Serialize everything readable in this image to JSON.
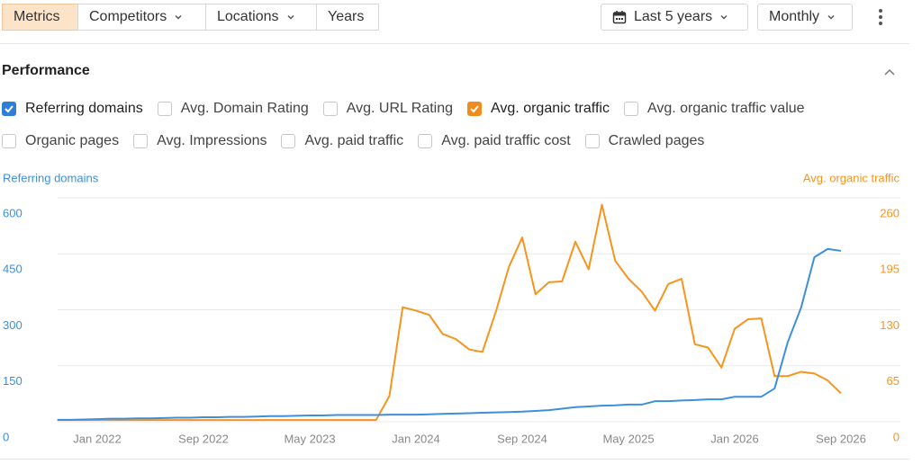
{
  "toolbar": {
    "left": [
      "Metrics",
      "Competitors",
      "Locations",
      "Years"
    ],
    "right": [
      "Last 5 years",
      "Monthly"
    ]
  },
  "section": {
    "title": "Performance"
  },
  "checkboxes": [
    [
      {
        "label": "Referring domains",
        "checked": true,
        "color": "#2f7fd9"
      },
      {
        "label": "Avg. Domain Rating",
        "checked": false
      },
      {
        "label": "Avg. URL Rating",
        "checked": false
      },
      {
        "label": "Avg. organic traffic",
        "checked": true,
        "color": "#f28b1e"
      },
      {
        "label": "Avg. organic traffic value",
        "checked": false
      }
    ],
    [
      {
        "label": "Organic pages",
        "checked": false
      },
      {
        "label": "Avg. Impressions",
        "checked": false
      },
      {
        "label": "Avg. paid traffic",
        "checked": false
      },
      {
        "label": "Avg. paid traffic cost",
        "checked": false
      },
      {
        "label": "Crawled pages",
        "checked": false
      }
    ]
  ],
  "chart_data": {
    "type": "line",
    "categories": [
      null,
      null,
      null,
      "Jan 2022",
      null,
      null,
      null,
      null,
      null,
      null,
      null,
      "Sep 2022",
      null,
      null,
      null,
      null,
      null,
      null,
      null,
      "May 2023",
      null,
      null,
      null,
      null,
      null,
      null,
      null,
      "Jan 2024",
      null,
      null,
      null,
      null,
      null,
      null,
      null,
      "Sep 2024",
      null,
      null,
      null,
      null,
      null,
      null,
      null,
      "May 2025",
      null,
      null,
      null,
      null,
      null,
      null,
      null,
      "Jan 2026",
      null,
      null,
      null,
      null,
      null,
      null,
      null,
      "Sep 2026"
    ],
    "series": [
      {
        "name": "Referring domains",
        "color": "#3d8fdb",
        "axis": "y",
        "values": [
          5,
          5,
          6,
          7,
          8,
          8,
          9,
          9,
          10,
          11,
          11,
          12,
          12,
          13,
          13,
          14,
          15,
          15,
          16,
          17,
          17,
          18,
          18,
          18,
          18,
          19,
          19,
          19,
          20,
          21,
          22,
          23,
          24,
          25,
          26,
          27,
          29,
          31,
          35,
          39,
          41,
          43,
          44,
          46,
          46,
          55,
          55,
          57,
          58,
          60,
          60,
          67,
          67,
          67,
          89,
          214,
          306,
          441,
          463,
          458
        ]
      },
      {
        "name": "Avg. organic traffic",
        "color": "#f7941d",
        "axis": "y2",
        "values": [
          2,
          2,
          2,
          2,
          2,
          2,
          2,
          2,
          2,
          2,
          2,
          2,
          2,
          2,
          2,
          2,
          2,
          2,
          2,
          2,
          2,
          2,
          2,
          2,
          2,
          30,
          133,
          129,
          124,
          102,
          96,
          84,
          81,
          127,
          180,
          214,
          148,
          162,
          163,
          209,
          177,
          252,
          187,
          166,
          151,
          129,
          160,
          166,
          90,
          86,
          63,
          108,
          119,
          120,
          53,
          53,
          58,
          56,
          48,
          33
        ]
      }
    ],
    "ylim": [
      0,
      600
    ],
    "yticks": [
      0,
      150,
      300,
      450,
      600
    ],
    "y2lim": [
      0,
      260
    ],
    "y2ticks": [
      0,
      65,
      130,
      195,
      260
    ],
    "grid": true
  }
}
